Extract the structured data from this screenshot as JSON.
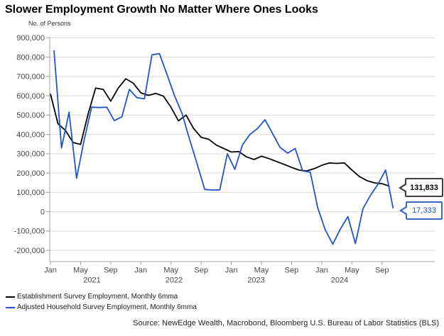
{
  "title": "Slower Employment Growth No Matter Where Ones Looks",
  "source": "Source: NewEdge Wealth, Macrobond, Bloomberg U.S. Bureau of Labor Statistics (BLS)",
  "colors": {
    "establishment": "#000000",
    "household": "#1e55c8",
    "gridline": "#d9d9d9",
    "axis": "#a0a0a0",
    "tick_label": "#4a4a4a"
  },
  "callouts": [
    {
      "label": "131,833",
      "series": "establishment"
    },
    {
      "label": "17,333",
      "series": "household"
    }
  ],
  "chart_data": {
    "type": "line",
    "title": "Slower Employment Growth No Matter Where Ones Looks",
    "ylabel": "No. of Persons",
    "xlabel": "",
    "ylim": [
      -200000,
      900000
    ],
    "ytick_step": 100000,
    "grid": "horizontal",
    "legend_position": "bottom-left",
    "x_tick_labels": [
      "Jan",
      "May",
      "Sep",
      "Jan",
      "May",
      "Sep",
      "Jan",
      "May",
      "Sep",
      "Jan",
      "May",
      "Sep"
    ],
    "year_labels": [
      "2021",
      "2022",
      "2023",
      "2024"
    ],
    "x": [
      "2021-01",
      "2021-02",
      "2021-03",
      "2021-04",
      "2021-05",
      "2021-06",
      "2021-07",
      "2021-08",
      "2021-09",
      "2021-10",
      "2021-11",
      "2021-12",
      "2022-01",
      "2022-02",
      "2022-03",
      "2022-04",
      "2022-05",
      "2022-06",
      "2022-07",
      "2022-08",
      "2022-09",
      "2022-10",
      "2022-11",
      "2022-12",
      "2023-01",
      "2023-02",
      "2023-03",
      "2023-04",
      "2023-05",
      "2023-06",
      "2023-07",
      "2023-08",
      "2023-09",
      "2023-10",
      "2023-11",
      "2023-12",
      "2024-01",
      "2024-02",
      "2024-03",
      "2024-04",
      "2024-05",
      "2024-06",
      "2024-07",
      "2024-08",
      "2024-09",
      "2024-10"
    ],
    "series": [
      {
        "name": "Establishment Survey Employment, Monthly 6mma",
        "color": "#000000",
        "last_value_label": "131,833",
        "values": [
          610000,
          455000,
          420000,
          358000,
          348000,
          505000,
          640000,
          633000,
          572000,
          640000,
          688000,
          665000,
          615000,
          602000,
          612000,
          598000,
          540000,
          470000,
          500000,
          430000,
          385000,
          375000,
          345000,
          327000,
          309000,
          311000,
          284000,
          270000,
          287000,
          275000,
          260000,
          245000,
          229000,
          215000,
          211000,
          223000,
          240000,
          252000,
          250000,
          252000,
          216000,
          182000,
          161000,
          149000,
          145000,
          131833
        ]
      },
      {
        "name": "Adjusted Household Survey Employment, Monthly 6mma",
        "color": "#1e55c8",
        "last_value_label": "17,333",
        "values": [
          835000,
          330000,
          515000,
          173000,
          370000,
          541000,
          539000,
          541000,
          471000,
          491000,
          633000,
          590000,
          584000,
          812000,
          818000,
          710000,
          600000,
          508000,
          374000,
          246000,
          115000,
          112000,
          113000,
          300000,
          219000,
          345000,
          400000,
          430000,
          476000,
          405000,
          333000,
          303000,
          327000,
          211000,
          205000,
          20000,
          -95000,
          -168000,
          -90000,
          -25000,
          -165000,
          15000,
          85000,
          143000,
          216000,
          17333
        ]
      }
    ]
  }
}
